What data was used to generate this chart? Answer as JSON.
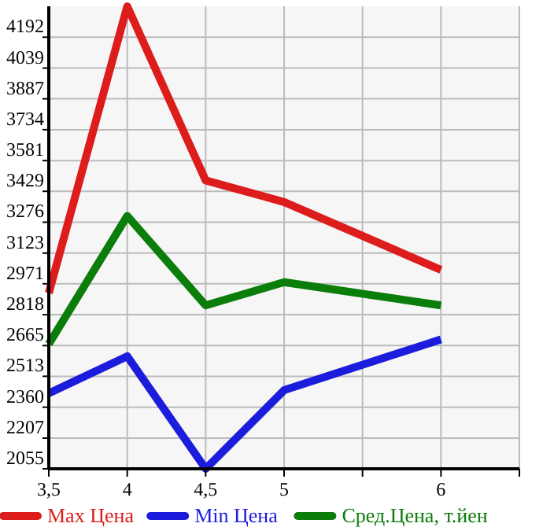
{
  "chart_data": {
    "type": "line",
    "x": [
      3.5,
      4,
      4.5,
      5,
      6
    ],
    "series": [
      {
        "name": "Max Цена",
        "color": "#dd1c1c",
        "values": [
          2925,
          4345,
          3483,
          3376,
          3040
        ]
      },
      {
        "name": "Min Цена",
        "color": "#1c1cdd",
        "values": [
          2429,
          2612,
          2055,
          2444,
          2696
        ]
      },
      {
        "name": "Сред.Цена, т.йен",
        "color": "#0a7d0a",
        "values": [
          2673,
          3307,
          2864,
          2979,
          2864
        ]
      }
    ],
    "xlim": [
      3.5,
      6.5
    ],
    "xticks": [
      {
        "value": 3.5,
        "label": "3,5"
      },
      4,
      {
        "value": 4.5,
        "label": "4,5"
      },
      5,
      {
        "value": 5.5,
        "label": null
      },
      6,
      {
        "value": 6.5,
        "label": null
      }
    ],
    "ylim": [
      2055,
      4345
    ],
    "yticks": [
      2055,
      2207,
      2360,
      2513,
      2665,
      2818,
      2971,
      3123,
      3276,
      3429,
      3581,
      3734,
      3887,
      4039,
      4192
    ],
    "grid": true,
    "legend": "bottom",
    "marker": "none",
    "line_style": "solid"
  }
}
